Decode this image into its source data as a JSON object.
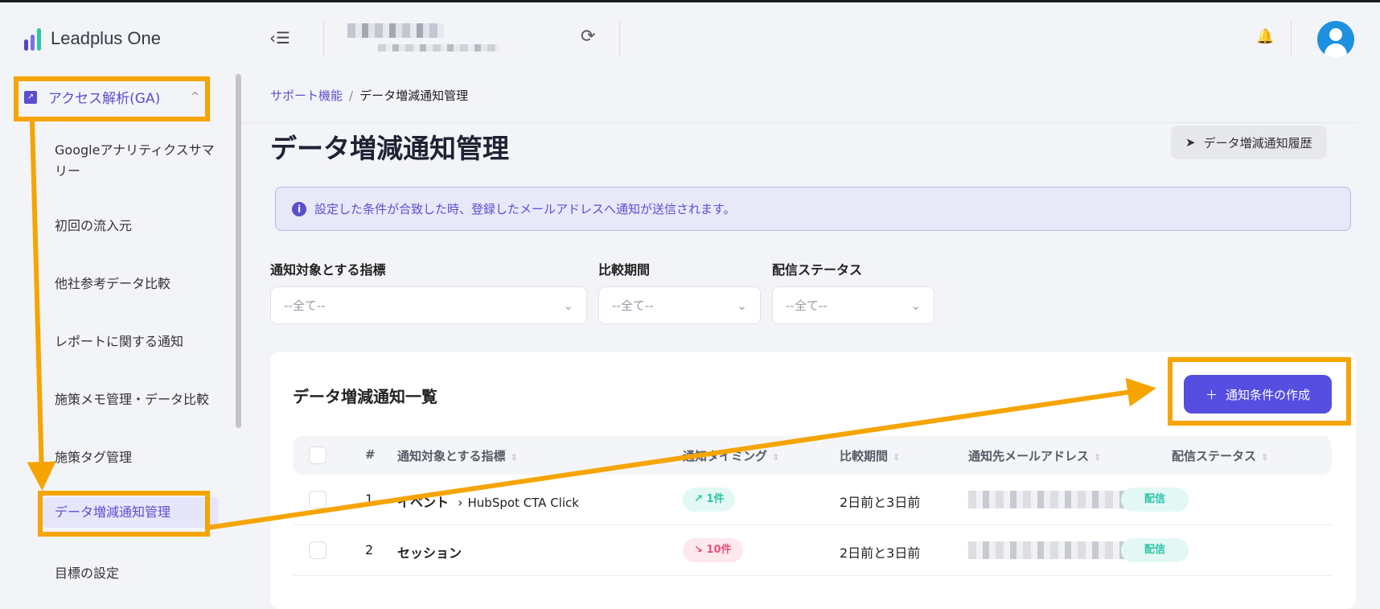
{
  "brand": {
    "name": "Leadplus One",
    "colors": [
      "#4f46c8",
      "#7c6fe0",
      "#2cc6a8"
    ]
  },
  "header": {
    "toggle_icon": "menu-collapse-icon",
    "sync_icon": "sync-icon",
    "bell_icon": "bell-icon",
    "avatar_icon": "user-icon"
  },
  "sidebar": {
    "group": {
      "label": "アクセス解析(GA)",
      "icon": "chart-icon"
    },
    "items": [
      {
        "label": "Googleアナリティクスサマリー"
      },
      {
        "label": "初回の流入元"
      },
      {
        "label": "他社参考データ比較"
      },
      {
        "label": "レポートに関する通知"
      },
      {
        "label": "施策メモ管理・データ比較"
      },
      {
        "label": "施策タグ管理"
      },
      {
        "label": "データ増減通知管理",
        "active": true
      },
      {
        "label": "目標の設定"
      }
    ]
  },
  "breadcrumb": {
    "parent": "サポート機能",
    "separator": "/",
    "current": "データ増減通知管理"
  },
  "page": {
    "title": "データ増減通知管理",
    "history_button": "データ増減通知履歴",
    "info": "設定した条件が合致した時、登録したメールアドレスへ通知が送信されます。"
  },
  "filters": [
    {
      "label": "通知対象とする指標",
      "value": "--全て--"
    },
    {
      "label": "比較期間",
      "value": "--全て--"
    },
    {
      "label": "配信ステータス",
      "value": "--全て--"
    }
  ],
  "list": {
    "title": "データ増減通知一覧",
    "create_button": "通知条件の作成",
    "columns": [
      "#",
      "通知対象とする指標",
      "通知タイミング",
      "比較期間",
      "通知先メールアドレス",
      "配信ステータス"
    ],
    "rows": [
      {
        "no": "1",
        "metric": "イベント",
        "sub": "HubSpot CTA Click",
        "timing": "↗ 1件",
        "direction": "up",
        "period": "2日前と3日前",
        "status": "配信"
      },
      {
        "no": "2",
        "metric": "セッション",
        "sub": "",
        "timing": "↘ 10件",
        "direction": "down",
        "period": "2日前と3日前",
        "status": "配信"
      }
    ]
  },
  "annotation_color": "#f5a400"
}
